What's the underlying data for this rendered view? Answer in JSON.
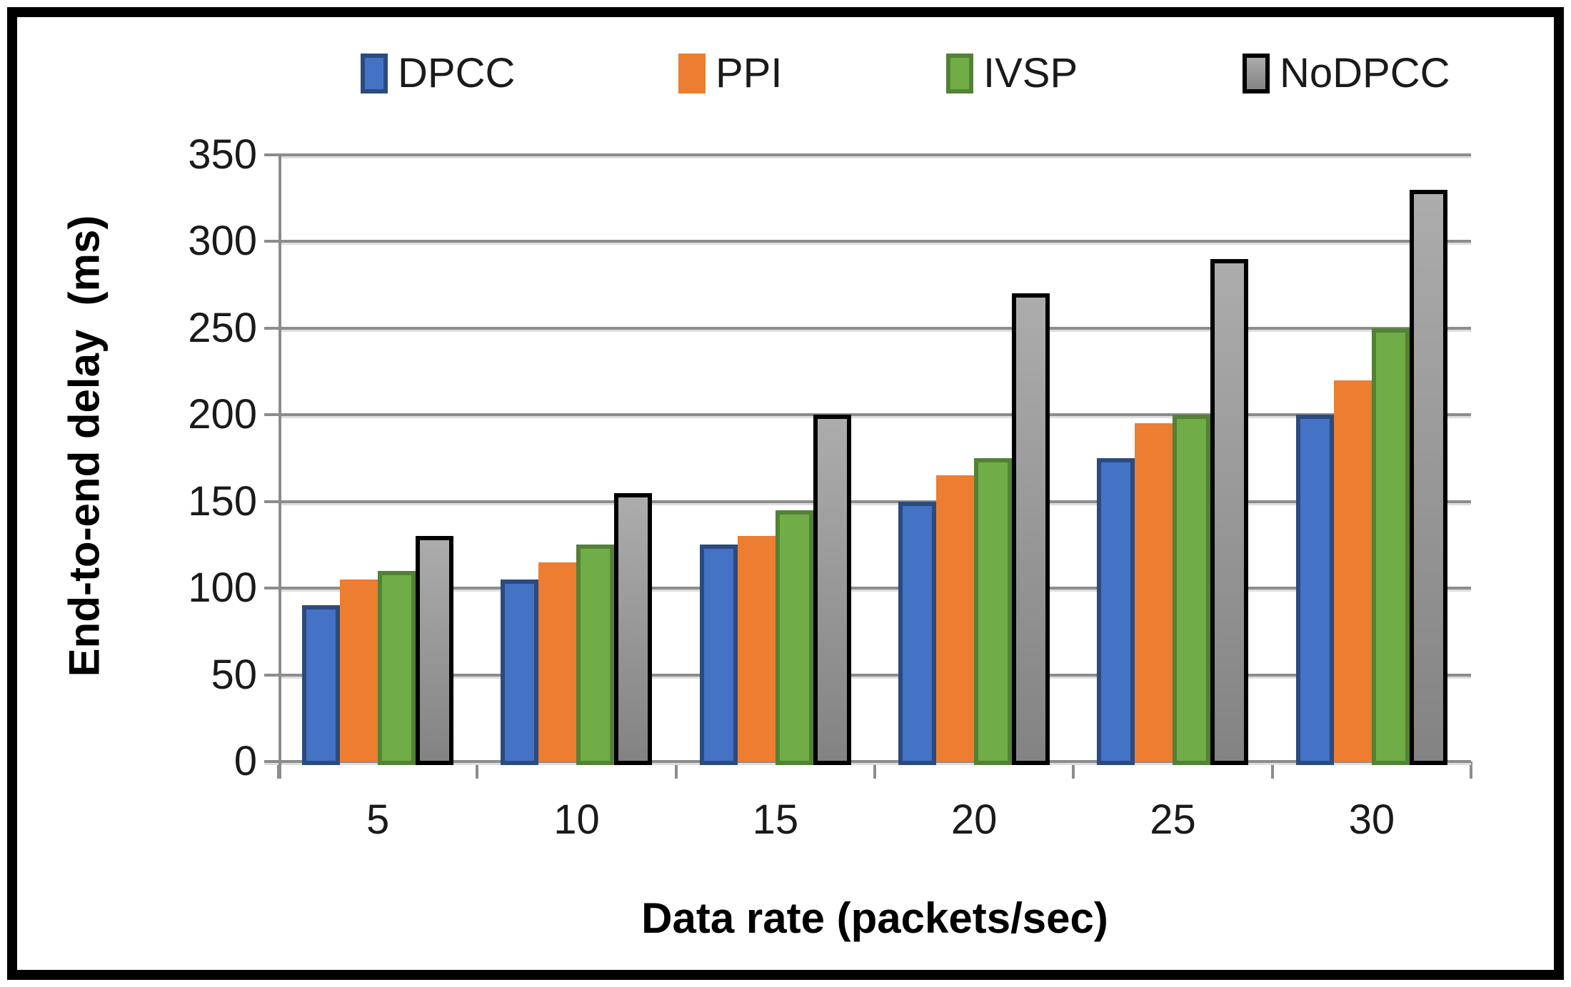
{
  "chart_data": {
    "type": "bar",
    "title": "",
    "xlabel": "Data rate (packets/sec)",
    "ylabel": "End-to-end delay  (ms)",
    "categories": [
      "5",
      "10",
      "15",
      "20",
      "25",
      "30"
    ],
    "yticks": [
      0,
      50,
      100,
      150,
      200,
      250,
      300,
      350
    ],
    "ylim": [
      0,
      350
    ],
    "grid": true,
    "legend_position": "top",
    "series": [
      {
        "name": "DPCC",
        "fill": "#4472C4",
        "border": "#2B4A7E",
        "values": [
          90,
          105,
          125,
          150,
          175,
          200
        ]
      },
      {
        "name": "PPI",
        "fill": "#ED7D31",
        "border": null,
        "values": [
          105,
          115,
          130,
          165,
          195,
          220
        ]
      },
      {
        "name": "IVSP",
        "fill": "#70AD47",
        "border": "#538135",
        "values": [
          110,
          125,
          145,
          175,
          200,
          250
        ]
      },
      {
        "name": "NoDPCC",
        "fill": "#9A9A9A",
        "fill_gradient": [
          "#ACACAC",
          "#838383"
        ],
        "border": "#000000",
        "values": [
          130,
          155,
          200,
          270,
          290,
          330
        ]
      }
    ],
    "colors": {
      "axis": "#8C8C8C",
      "gridline": "#8C8C8C",
      "text": "#1A1A1A",
      "frame": "#000000",
      "background": "#FFFFFF"
    }
  }
}
